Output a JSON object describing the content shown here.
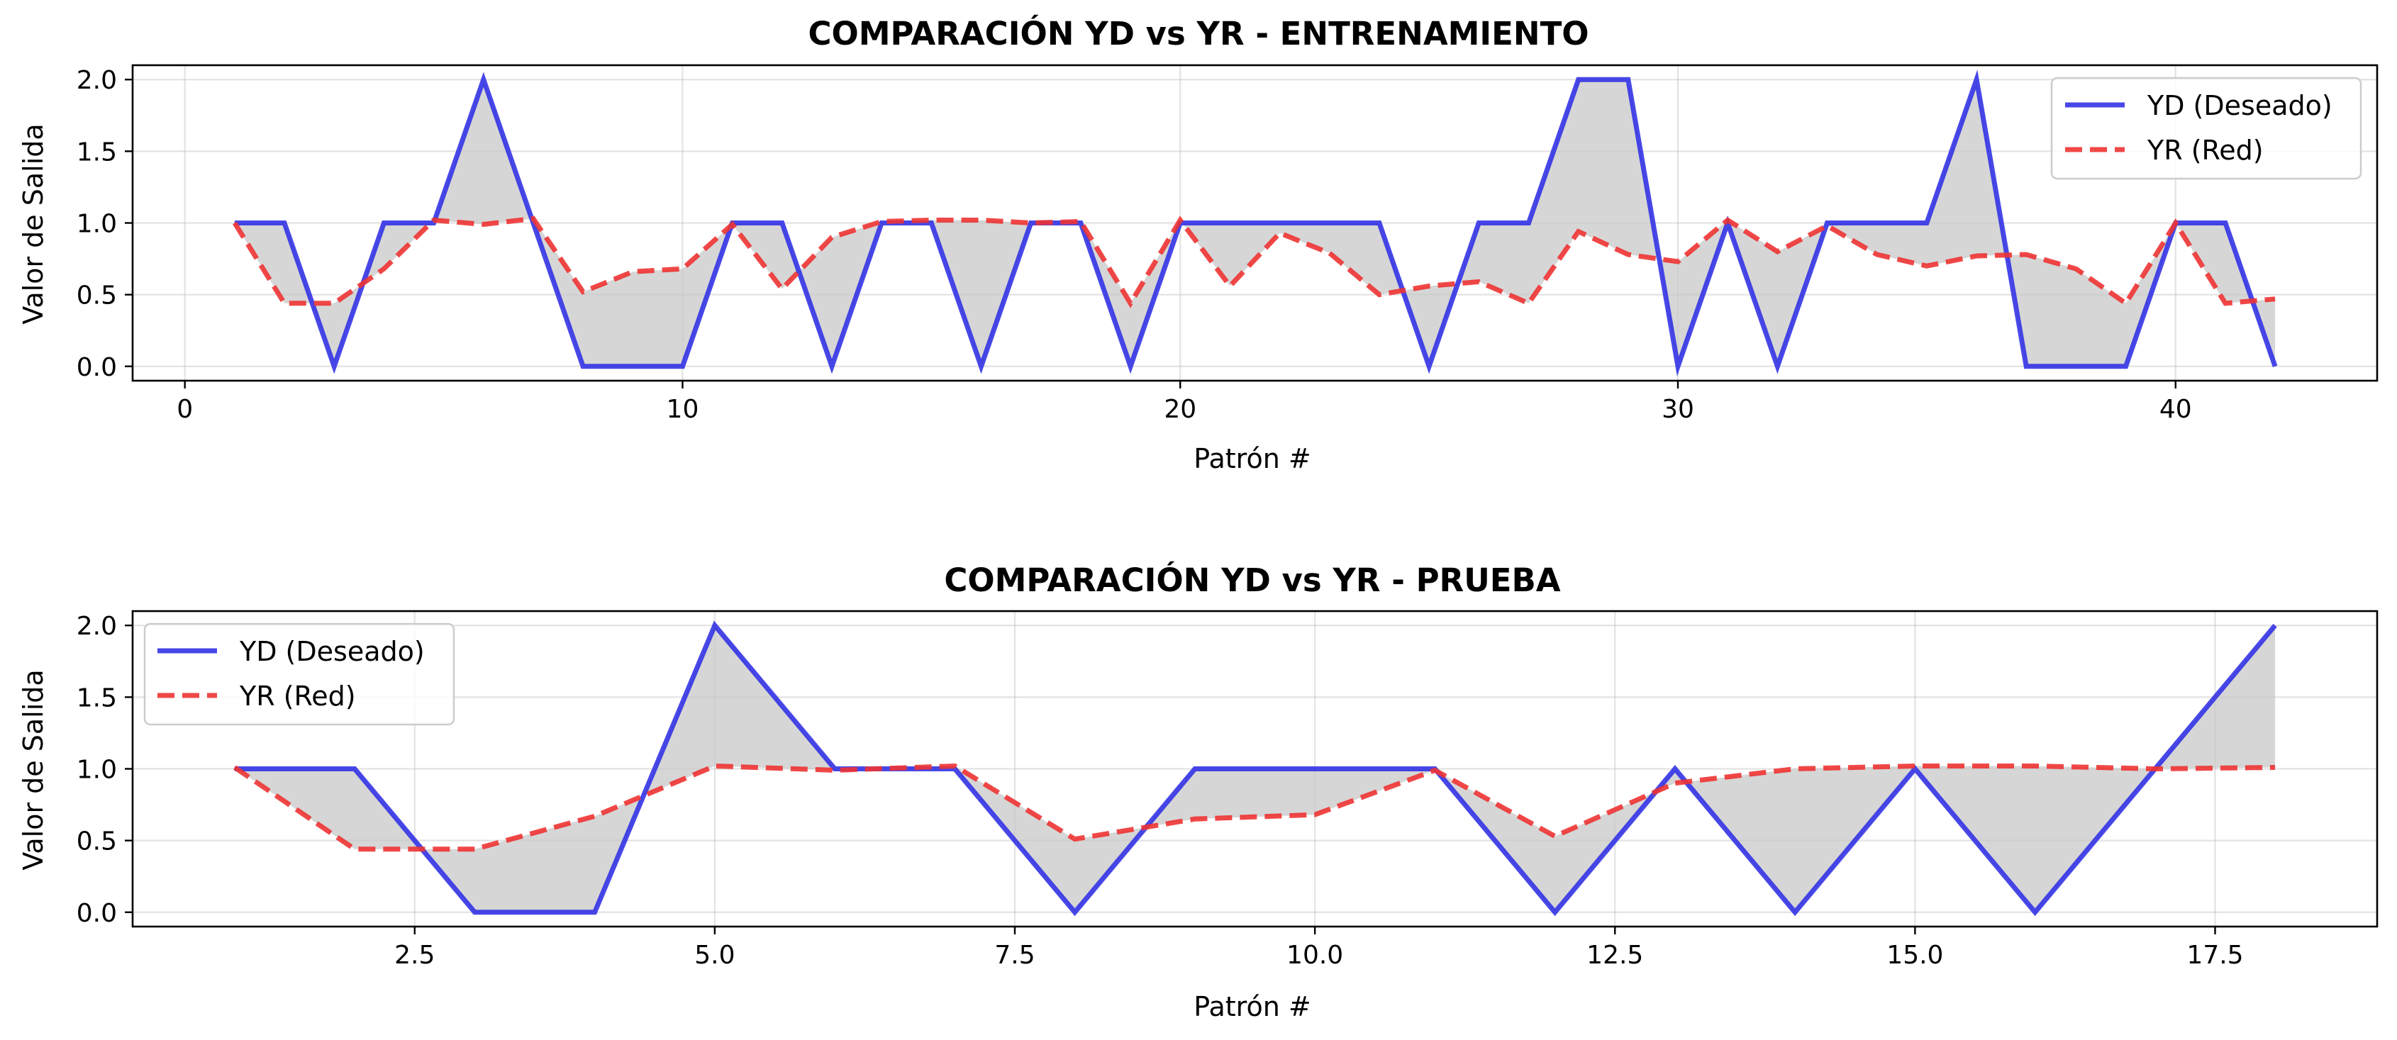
{
  "colors": {
    "yd": "#3333e6",
    "yr": "#ee3333",
    "fill": "#c8c8c8"
  },
  "chart_data": [
    {
      "type": "line",
      "title": "COMPARACIÓN YD vs YR - ENTRENAMIENTO",
      "xlabel": "Patrón #",
      "ylabel": "Valor de Salida",
      "xlim": [
        -1.05,
        44.05
      ],
      "ylim": [
        -0.1,
        2.1
      ],
      "xticks": [
        0,
        10,
        20,
        30,
        40
      ],
      "xtick_labels": [
        "0",
        "10",
        "20",
        "30",
        "40"
      ],
      "yticks": [
        0.0,
        0.5,
        1.0,
        1.5,
        2.0
      ],
      "ytick_labels": [
        "0.0",
        "0.5",
        "1.0",
        "1.5",
        "2.0"
      ],
      "grid": true,
      "legend_position": "top-right",
      "fill_between": true,
      "x": [
        1,
        2,
        3,
        4,
        5,
        6,
        7,
        8,
        9,
        10,
        11,
        12,
        13,
        14,
        15,
        16,
        17,
        18,
        19,
        20,
        21,
        22,
        23,
        24,
        25,
        26,
        27,
        28,
        29,
        30,
        31,
        32,
        33,
        34,
        35,
        36,
        37,
        38,
        39,
        40,
        41,
        42
      ],
      "series": [
        {
          "name": "YD (Deseado)",
          "style": "solid",
          "values": [
            1,
            1,
            0,
            1,
            1,
            2,
            1,
            0,
            0,
            0,
            1,
            1,
            0,
            1,
            1,
            0,
            1,
            1,
            0,
            1,
            1,
            1,
            1,
            1,
            0,
            1,
            1,
            2,
            2,
            0,
            1,
            0,
            1,
            1,
            1,
            2,
            0,
            0,
            0,
            1,
            1,
            0
          ]
        },
        {
          "name": "YR (Red)",
          "style": "dashed",
          "values": [
            1.0,
            0.44,
            0.44,
            0.68,
            1.02,
            0.99,
            1.03,
            0.52,
            0.66,
            0.68,
            0.99,
            0.54,
            0.9,
            1.01,
            1.02,
            1.02,
            1.0,
            1.01,
            0.44,
            1.02,
            0.56,
            0.93,
            0.79,
            0.5,
            0.56,
            0.59,
            0.44,
            0.94,
            0.78,
            0.73,
            1.02,
            0.8,
            0.98,
            0.78,
            0.7,
            0.77,
            0.78,
            0.68,
            0.44,
            1.0,
            0.44,
            0.47
          ]
        }
      ]
    },
    {
      "type": "line",
      "title": "COMPARACIÓN YD vs YR - PRUEBA",
      "xlabel": "Patrón #",
      "ylabel": "Valor de Salida",
      "xlim": [
        0.15,
        18.85
      ],
      "ylim": [
        -0.1,
        2.1
      ],
      "xticks": [
        2.5,
        5.0,
        7.5,
        10.0,
        12.5,
        15.0,
        17.5
      ],
      "xtick_labels": [
        "2.5",
        "5.0",
        "7.5",
        "10.0",
        "12.5",
        "15.0",
        "17.5"
      ],
      "yticks": [
        0.0,
        0.5,
        1.0,
        1.5,
        2.0
      ],
      "ytick_labels": [
        "0.0",
        "0.5",
        "1.0",
        "1.5",
        "2.0"
      ],
      "grid": true,
      "legend_position": "top-left",
      "fill_between": true,
      "x": [
        1,
        2,
        3,
        4,
        5,
        6,
        7,
        8,
        9,
        10,
        11,
        12,
        13,
        14,
        15,
        16,
        17,
        18
      ],
      "series": [
        {
          "name": "YD (Deseado)",
          "style": "solid",
          "values": [
            1,
            1,
            0,
            0,
            2,
            1,
            1,
            0,
            1,
            1,
            1,
            0,
            1,
            0,
            1,
            0,
            1,
            2
          ]
        },
        {
          "name": "YR (Red)",
          "style": "dashed",
          "values": [
            1.01,
            0.44,
            0.44,
            0.67,
            1.02,
            0.99,
            1.02,
            0.51,
            0.65,
            0.68,
            0.99,
            0.53,
            0.9,
            1.0,
            1.02,
            1.02,
            1.0,
            1.01
          ]
        }
      ]
    }
  ]
}
